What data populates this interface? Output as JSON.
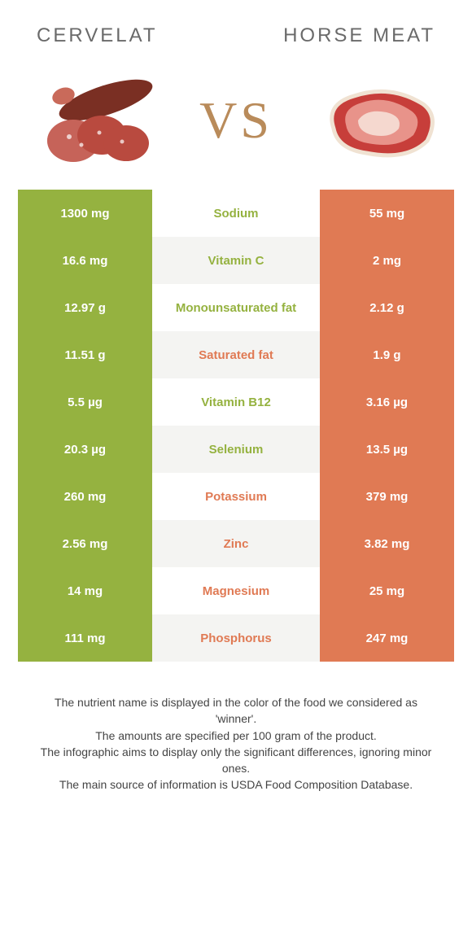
{
  "colors": {
    "left": "#95b240",
    "right": "#e07a54",
    "vs": "#b98b5a",
    "row_alt_bg": "#f4f4f2",
    "title": "#6a6a6a",
    "footnote": "#444444"
  },
  "foods": {
    "left": {
      "title": "Cervelat",
      "image_name": "cervelat-salami"
    },
    "right": {
      "title": "Horse meat",
      "image_name": "horse-meat-steak"
    }
  },
  "vs_text": "VS",
  "rows": [
    {
      "nutrient": "Sodium",
      "left": "1300 mg",
      "right": "55 mg",
      "winner": "left"
    },
    {
      "nutrient": "Vitamin C",
      "left": "16.6 mg",
      "right": "2 mg",
      "winner": "left"
    },
    {
      "nutrient": "Monounsaturated fat",
      "left": "12.97 g",
      "right": "2.12 g",
      "winner": "left"
    },
    {
      "nutrient": "Saturated fat",
      "left": "11.51 g",
      "right": "1.9 g",
      "winner": "right"
    },
    {
      "nutrient": "Vitamin B12",
      "left": "5.5 µg",
      "right": "3.16 µg",
      "winner": "left"
    },
    {
      "nutrient": "Selenium",
      "left": "20.3 µg",
      "right": "13.5 µg",
      "winner": "left"
    },
    {
      "nutrient": "Potassium",
      "left": "260 mg",
      "right": "379 mg",
      "winner": "right"
    },
    {
      "nutrient": "Zinc",
      "left": "2.56 mg",
      "right": "3.82 mg",
      "winner": "right"
    },
    {
      "nutrient": "Magnesium",
      "left": "14 mg",
      "right": "25 mg",
      "winner": "right"
    },
    {
      "nutrient": "Phosphorus",
      "left": "111 mg",
      "right": "247 mg",
      "winner": "right"
    }
  ],
  "footnotes": [
    "The nutrient name is displayed in the color of the food we considered as 'winner'.",
    "The amounts are specified per 100 gram of the product.",
    "The infographic aims to display only the significant differences, ignoring minor ones.",
    "The main source of information is USDA Food Composition Database."
  ]
}
